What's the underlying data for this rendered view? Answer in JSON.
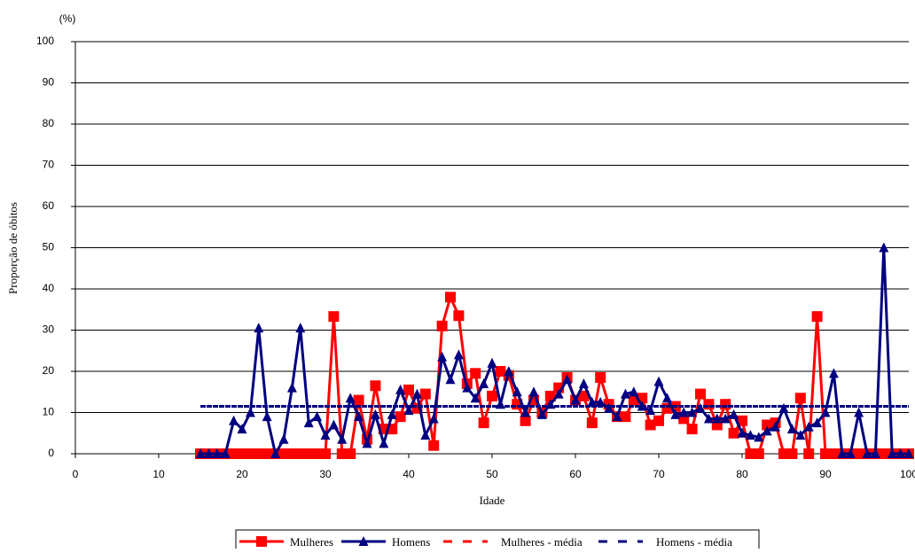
{
  "chart_data": {
    "type": "line",
    "y_annotation": "(%)",
    "x_label": "Idade",
    "y_label": "Proporção de óbitos",
    "xlim": [
      0,
      100
    ],
    "xticks": [
      0,
      10,
      20,
      30,
      40,
      50,
      60,
      70,
      80,
      90,
      100
    ],
    "ylim": [
      0,
      100
    ],
    "yticks": [
      0,
      10,
      20,
      30,
      40,
      50,
      60,
      70,
      80,
      90,
      100
    ],
    "grid": true,
    "legend": "bottom",
    "x": [
      15,
      16,
      17,
      18,
      19,
      20,
      21,
      22,
      23,
      24,
      25,
      26,
      27,
      28,
      29,
      30,
      31,
      32,
      33,
      34,
      35,
      36,
      37,
      38,
      39,
      40,
      41,
      42,
      43,
      44,
      45,
      46,
      47,
      48,
      49,
      50,
      51,
      52,
      53,
      54,
      55,
      56,
      57,
      58,
      59,
      60,
      61,
      62,
      63,
      64,
      65,
      66,
      67,
      68,
      69,
      70,
      71,
      72,
      73,
      74,
      75,
      76,
      77,
      78,
      79,
      80,
      81,
      82,
      83,
      84,
      85,
      86,
      87,
      88,
      89,
      90,
      91,
      92,
      93,
      94,
      95,
      96,
      97,
      98,
      99,
      100
    ],
    "series": [
      {
        "name": "Mulheres",
        "color": "#ff0000",
        "marker": "square",
        "dash": false,
        "values": [
          0,
          0,
          0,
          0,
          0,
          0,
          0,
          0,
          0,
          0,
          0,
          0,
          0,
          0,
          0,
          0,
          33.3,
          0,
          0,
          13,
          3.5,
          16.5,
          6,
          6,
          9,
          15.5,
          11,
          14.5,
          2,
          31,
          38,
          33.5,
          17,
          19.5,
          7.5,
          14,
          20,
          19,
          12,
          8,
          13,
          10,
          14,
          16,
          18.5,
          13,
          14,
          7.5,
          18.5,
          12,
          9,
          9,
          13,
          13.5,
          7,
          8,
          11,
          11.5,
          8.5,
          6,
          14.5,
          12,
          7,
          12,
          5,
          8,
          0,
          0,
          7,
          7.5,
          0,
          0,
          13.5,
          0,
          33.3,
          0,
          0,
          0,
          0,
          0,
          0,
          0,
          0,
          0,
          0,
          0
        ]
      },
      {
        "name": "Homens",
        "color": "#000080",
        "marker": "triangle",
        "dash": false,
        "values": [
          0,
          0,
          0,
          0,
          8,
          6,
          10,
          30.5,
          9,
          0,
          3.5,
          16,
          30.5,
          7.5,
          9,
          4.5,
          7,
          3.5,
          13.5,
          9,
          2.5,
          9.5,
          2.5,
          9.5,
          15.5,
          10.5,
          14.5,
          4.5,
          8.5,
          23.5,
          18,
          24,
          16,
          13.5,
          17,
          22,
          12,
          20,
          15,
          10,
          15,
          9.5,
          12,
          14.5,
          18,
          13,
          17,
          12.5,
          12.5,
          11,
          9,
          14.5,
          15,
          11.5,
          10.5,
          17.5,
          13.5,
          9.5,
          10,
          10,
          11,
          8.5,
          8.5,
          8.5,
          9.5,
          5,
          4.5,
          4,
          5.5,
          6.5,
          11,
          6,
          4.5,
          6.5,
          7.5,
          10,
          19.5,
          0,
          0,
          10,
          0,
          0,
          50,
          0,
          0,
          0
        ]
      },
      {
        "name": "Mulheres - média",
        "color": "#ff0000",
        "marker": "none",
        "dash": true,
        "x": [
          15,
          100
        ],
        "values": [
          11.5,
          11.5
        ]
      },
      {
        "name": "Homens - média",
        "color": "#000080",
        "marker": "none",
        "dash": true,
        "x": [
          15,
          100
        ],
        "values": [
          11.5,
          11.5
        ]
      }
    ]
  }
}
